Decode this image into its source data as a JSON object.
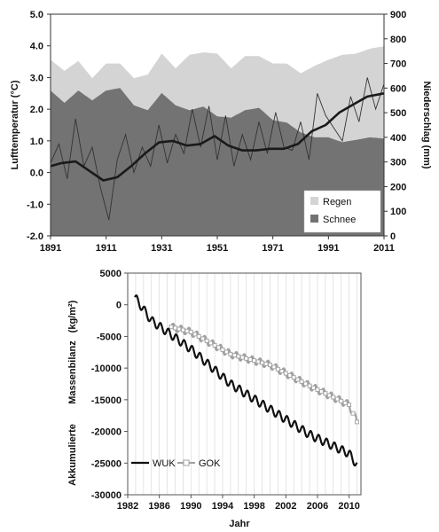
{
  "chart_data": [
    {
      "type": "area",
      "title": "",
      "xlabel": "",
      "ylabel_left": "Lufttemperatur (°C)",
      "ylabel_right": "Niederschlag (mm)",
      "x_ticks": [
        "1891",
        "1911",
        "1931",
        "1951",
        "1971",
        "1991",
        "2011"
      ],
      "y_left_ticks": [
        "-2.0",
        "-1.0",
        "0.0",
        "1.0",
        "2.0",
        "3.0",
        "4.0",
        "5.0"
      ],
      "y_right_ticks": [
        "0",
        "100",
        "200",
        "300",
        "400",
        "500",
        "600",
        "700",
        "800",
        "900"
      ],
      "ylim_left": [
        -2.0,
        5.0
      ],
      "ylim_right": [
        0,
        900
      ],
      "xlim": [
        1891,
        2011
      ],
      "legend_position": "bottom-right",
      "colors": {
        "regen": "#d4d4d4",
        "schnee": "#737373",
        "line": "#1a1a1a"
      },
      "legend": [
        {
          "key": "regen",
          "label": "Regen"
        },
        {
          "key": "schnee",
          "label": "Schnee"
        }
      ],
      "precip_years": [
        1891,
        1896,
        1901,
        1906,
        1911,
        1916,
        1921,
        1926,
        1931,
        1936,
        1941,
        1946,
        1951,
        1956,
        1961,
        1966,
        1971,
        1976,
        1981,
        1986,
        1991,
        1996,
        2001,
        2006,
        2011
      ],
      "total_precip_mm": [
        715,
        670,
        710,
        640,
        700,
        700,
        640,
        655,
        740,
        680,
        735,
        745,
        740,
        680,
        730,
        730,
        700,
        700,
        660,
        690,
        715,
        735,
        740,
        760,
        770
      ],
      "snow_precip_mm": [
        590,
        540,
        590,
        550,
        590,
        600,
        530,
        510,
        580,
        530,
        510,
        525,
        485,
        480,
        510,
        520,
        470,
        460,
        420,
        400,
        400,
        380,
        390,
        400,
        395
      ],
      "annual_temp_years": [
        1891,
        1894,
        1897,
        1900,
        1903,
        1906,
        1909,
        1912,
        1915,
        1918,
        1921,
        1924,
        1927,
        1930,
        1933,
        1936,
        1939,
        1942,
        1945,
        1948,
        1951,
        1954,
        1957,
        1960,
        1963,
        1966,
        1969,
        1972,
        1975,
        1978,
        1981,
        1984,
        1987,
        1990,
        1993,
        1996,
        1999,
        2002,
        2005,
        2008,
        2011
      ],
      "annual_temp_c": [
        0.3,
        0.9,
        -0.2,
        1.7,
        0.2,
        0.8,
        -0.5,
        -1.5,
        0.4,
        1.2,
        0.0,
        0.8,
        0.2,
        1.5,
        0.3,
        1.2,
        0.6,
        2.0,
        0.8,
        2.1,
        0.4,
        1.8,
        0.2,
        1.2,
        0.4,
        1.6,
        0.6,
        1.9,
        0.8,
        0.7,
        1.6,
        0.4,
        2.5,
        1.8,
        1.4,
        1.0,
        2.4,
        1.6,
        3.0,
        2.0,
        2.8
      ],
      "smoothed_temp_years": [
        1891,
        1895,
        1900,
        1905,
        1910,
        1915,
        1920,
        1925,
        1930,
        1935,
        1940,
        1945,
        1950,
        1955,
        1960,
        1965,
        1970,
        1975,
        1980,
        1985,
        1990,
        1995,
        2000,
        2005,
        2011
      ],
      "smoothed_temp_c": [
        0.2,
        0.3,
        0.35,
        0.05,
        -0.25,
        -0.15,
        0.2,
        0.6,
        0.95,
        1.0,
        0.85,
        0.9,
        1.15,
        0.85,
        0.7,
        0.7,
        0.75,
        0.75,
        0.9,
        1.3,
        1.5,
        1.9,
        2.15,
        2.4,
        2.5
      ]
    },
    {
      "type": "line",
      "title": "",
      "xlabel": "Jahr",
      "ylabel_part1": "Akkumulierte",
      "ylabel_part2": "Massenbilanz",
      "ylabel_unit": "(kg/m²)",
      "x_ticks": [
        "1982",
        "1986",
        "1990",
        "1994",
        "1998",
        "2002",
        "2006",
        "2010"
      ],
      "y_ticks": [
        "5000",
        "0",
        "-5000",
        "-10000",
        "-15000",
        "-20000",
        "-25000",
        "-30000"
      ],
      "xlim": [
        1982,
        2011.5
      ],
      "ylim": [
        -30000,
        5000
      ],
      "grid": "vertical",
      "legend_position": "bottom-left",
      "colors": {
        "wuk": "#111111",
        "gok": "#a0a0a0"
      },
      "series": [
        {
          "name": "WUK",
          "x": [
            1982.9,
            1985,
            1990,
            1995,
            2000,
            2005,
            2010,
            2011
          ],
          "y": [
            1200,
            -2500,
            -7000,
            -12500,
            -16500,
            -20500,
            -23500,
            -25300
          ]
        },
        {
          "name": "GOK",
          "x": [
            1987.5,
            1990,
            1995,
            2000,
            2005,
            2010,
            2011
          ],
          "y": [
            -3500,
            -4300,
            -7800,
            -9500,
            -12800,
            -15800,
            -18500
          ]
        }
      ]
    }
  ]
}
